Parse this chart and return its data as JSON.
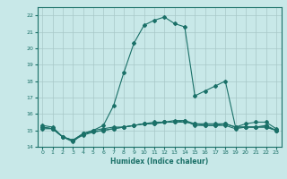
{
  "xlabel": "Humidex (Indice chaleur)",
  "xlim": [
    -0.5,
    23.5
  ],
  "ylim": [
    14.0,
    22.5
  ],
  "yticks": [
    14,
    15,
    16,
    17,
    18,
    19,
    20,
    21,
    22
  ],
  "xticks": [
    0,
    1,
    2,
    3,
    4,
    5,
    6,
    7,
    8,
    9,
    10,
    11,
    12,
    13,
    14,
    15,
    16,
    17,
    18,
    19,
    20,
    21,
    22,
    23
  ],
  "bg_color": "#c8e8e8",
  "line_color": "#1a7068",
  "grid_color": "#a8c8c8",
  "line1_x": [
    0,
    1,
    2,
    3,
    4,
    5,
    6,
    7,
    8,
    9,
    10,
    11,
    12,
    13,
    14,
    15,
    16,
    17,
    18,
    19,
    20,
    21,
    22,
    23
  ],
  "line1_y": [
    15.3,
    15.2,
    14.6,
    14.3,
    14.8,
    15.0,
    15.3,
    16.5,
    18.5,
    20.3,
    21.4,
    21.7,
    21.9,
    21.5,
    21.3,
    17.1,
    17.4,
    17.7,
    18.0,
    15.2,
    15.4,
    15.5,
    15.5,
    15.1
  ],
  "line2_x": [
    0,
    1,
    2,
    3,
    4,
    5,
    6,
    7,
    8,
    9,
    10,
    11,
    12,
    13,
    14,
    15,
    16,
    17,
    18,
    19,
    20,
    21,
    22,
    23
  ],
  "line2_y": [
    15.2,
    15.1,
    14.6,
    14.4,
    14.7,
    14.9,
    15.0,
    15.1,
    15.2,
    15.3,
    15.4,
    15.5,
    15.5,
    15.6,
    15.6,
    15.4,
    15.4,
    15.4,
    15.4,
    15.2,
    15.2,
    15.2,
    15.2,
    15.0
  ],
  "line3_x": [
    0,
    1,
    2,
    3,
    4,
    5,
    6,
    7,
    8,
    9,
    10,
    11,
    12,
    13,
    14,
    15,
    16,
    17,
    18,
    19,
    20,
    21,
    22,
    23
  ],
  "line3_y": [
    15.2,
    15.1,
    14.6,
    14.4,
    14.8,
    15.0,
    15.1,
    15.2,
    15.2,
    15.3,
    15.4,
    15.4,
    15.5,
    15.5,
    15.5,
    15.4,
    15.3,
    15.3,
    15.4,
    15.2,
    15.2,
    15.2,
    15.3,
    15.0
  ],
  "line4_x": [
    0,
    1,
    2,
    3,
    4,
    5,
    6,
    7,
    8,
    9,
    10,
    11,
    12,
    13,
    14,
    15,
    16,
    17,
    18,
    19,
    20,
    21,
    22,
    23
  ],
  "line4_y": [
    15.1,
    15.1,
    14.6,
    14.4,
    14.8,
    14.9,
    15.0,
    15.1,
    15.2,
    15.3,
    15.4,
    15.4,
    15.5,
    15.5,
    15.6,
    15.3,
    15.3,
    15.3,
    15.3,
    15.1,
    15.2,
    15.2,
    15.2,
    15.0
  ]
}
